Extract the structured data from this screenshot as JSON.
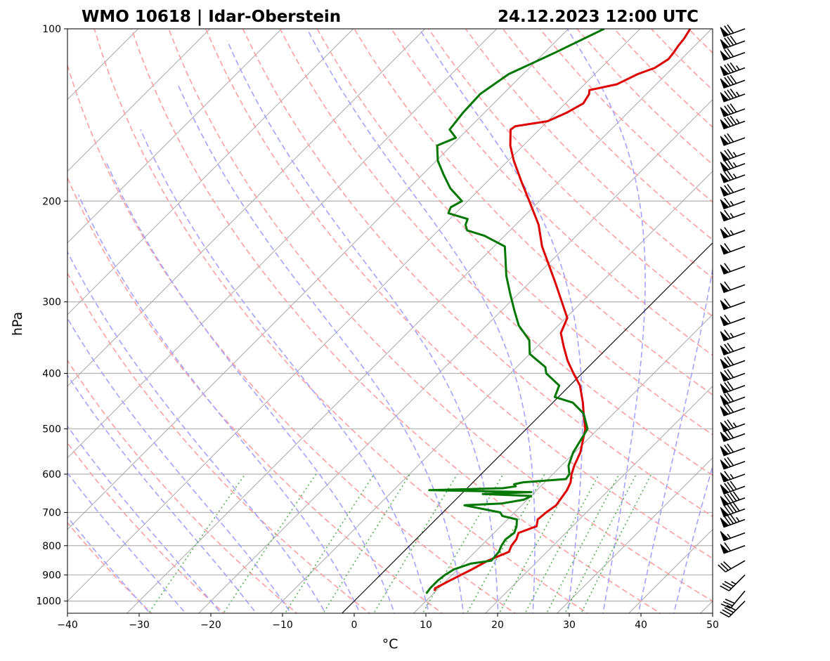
{
  "chart_data": {
    "type": "line",
    "title_left": "WMO 10618 | Idar-Oberstein",
    "title_right": "24.12.2023 12:00 UTC",
    "xlabel": "°C",
    "ylabel": "hPa",
    "xlim": [
      -40,
      50
    ],
    "ylim_hpa": [
      1050,
      100
    ],
    "x_ticks": [
      -40,
      -30,
      -20,
      -10,
      0,
      10,
      20,
      30,
      40,
      50
    ],
    "x_tick_labels": [
      "−40",
      "−30",
      "−20",
      "−10",
      "0",
      "10",
      "20",
      "30",
      "40",
      "50"
    ],
    "y_ticks": [
      1000,
      900,
      800,
      700,
      600,
      500,
      400,
      300,
      200,
      100
    ],
    "y_tick_labels": [
      "1000",
      "900",
      "800",
      "700",
      "600",
      "500",
      "400",
      "300",
      "200",
      "100"
    ],
    "colors": {
      "temperature": "#dd0000",
      "dewpoint": "#007700",
      "dry_adiabat": "#ff9f9f",
      "moist_adiabat": "#a3a3ff",
      "mixing_ratio": "#55b055",
      "isotherm": "#a0a0a0",
      "grid": "#b3b3b3",
      "zero_isotherm": "#000000"
    },
    "series": [
      {
        "name": "Temperature",
        "points": [
          [
            960,
            9.8
          ],
          [
            950,
            9.5
          ],
          [
            920,
            10.5
          ],
          [
            880,
            12.0
          ],
          [
            850,
            13.0
          ],
          [
            820,
            14.7
          ],
          [
            800,
            14.2
          ],
          [
            780,
            14.0
          ],
          [
            760,
            13.4
          ],
          [
            740,
            15.0
          ],
          [
            720,
            14.2
          ],
          [
            700,
            14.4
          ],
          [
            680,
            14.8
          ],
          [
            660,
            14.5
          ],
          [
            640,
            14.2
          ],
          [
            620,
            13.6
          ],
          [
            600,
            12.6
          ],
          [
            580,
            11.8
          ],
          [
            550,
            10.8
          ],
          [
            500,
            8.2
          ],
          [
            480,
            6.6
          ],
          [
            450,
            4.2
          ],
          [
            420,
            1.4
          ],
          [
            400,
            -1.2
          ],
          [
            380,
            -3.8
          ],
          [
            360,
            -6.2
          ],
          [
            340,
            -8.6
          ],
          [
            320,
            -9.8
          ],
          [
            300,
            -12.8
          ],
          [
            280,
            -16.0
          ],
          [
            260,
            -19.5
          ],
          [
            240,
            -23.3
          ],
          [
            220,
            -26.8
          ],
          [
            200,
            -31.4
          ],
          [
            185,
            -35.2
          ],
          [
            170,
            -39.2
          ],
          [
            160,
            -41.8
          ],
          [
            150,
            -44.0
          ],
          [
            148,
            -43.8
          ],
          [
            145,
            -40.0
          ],
          [
            140,
            -38.5
          ],
          [
            135,
            -37.5
          ],
          [
            130,
            -38.0
          ],
          [
            128,
            -38.5
          ],
          [
            125,
            -35.5
          ],
          [
            120,
            -34.0
          ],
          [
            117,
            -32.5
          ],
          [
            113,
            -31.8
          ],
          [
            110,
            -32.0
          ],
          [
            107,
            -32.3
          ],
          [
            104,
            -32.5
          ],
          [
            100,
            -33.0
          ]
        ]
      },
      {
        "name": "Dewpoint",
        "points": [
          [
            970,
            9.0
          ],
          [
            950,
            8.8
          ],
          [
            920,
            8.8
          ],
          [
            900,
            9.0
          ],
          [
            880,
            9.5
          ],
          [
            860,
            11.0
          ],
          [
            850,
            13.5
          ],
          [
            820,
            13.3
          ],
          [
            800,
            12.8
          ],
          [
            780,
            12.5
          ],
          [
            760,
            12.8
          ],
          [
            740,
            12.2
          ],
          [
            720,
            11.3
          ],
          [
            710,
            8.8
          ],
          [
            700,
            8.0
          ],
          [
            680,
            2.0
          ],
          [
            675,
            7.0
          ],
          [
            665,
            9.5
          ],
          [
            655,
            10.0
          ],
          [
            650,
            3.0
          ],
          [
            645,
            9.5
          ],
          [
            640,
            -5.0
          ],
          [
            635,
            5.0
          ],
          [
            630,
            6.5
          ],
          [
            625,
            6.0
          ],
          [
            620,
            7.0
          ],
          [
            612,
            12.5
          ],
          [
            600,
            12.3
          ],
          [
            580,
            11.0
          ],
          [
            550,
            9.8
          ],
          [
            500,
            8.5
          ],
          [
            470,
            5.8
          ],
          [
            450,
            2.8
          ],
          [
            440,
            -0.5
          ],
          [
            420,
            -1.5
          ],
          [
            400,
            -5.0
          ],
          [
            390,
            -6.0
          ],
          [
            370,
            -10.0
          ],
          [
            350,
            -12.0
          ],
          [
            330,
            -15.5
          ],
          [
            310,
            -18.3
          ],
          [
            290,
            -21.2
          ],
          [
            270,
            -24.2
          ],
          [
            250,
            -27.0
          ],
          [
            240,
            -28.5
          ],
          [
            230,
            -32.8
          ],
          [
            225,
            -36.0
          ],
          [
            220,
            -37.0
          ],
          [
            215,
            -37.5
          ],
          [
            210,
            -41.0
          ],
          [
            205,
            -41.5
          ],
          [
            200,
            -40.8
          ],
          [
            190,
            -44.2
          ],
          [
            180,
            -47.0
          ],
          [
            170,
            -49.8
          ],
          [
            160,
            -52.0
          ],
          [
            155,
            -50.5
          ],
          [
            150,
            -52.5
          ],
          [
            140,
            -53.0
          ],
          [
            130,
            -53.2
          ],
          [
            120,
            -52.0
          ],
          [
            110,
            -48.5
          ],
          [
            100,
            -45.0
          ]
        ]
      }
    ],
    "wind_barbs": [
      [
        1000,
        225,
        40
      ],
      [
        960,
        220,
        30
      ],
      [
        900,
        225,
        35
      ],
      [
        850,
        240,
        30
      ],
      [
        800,
        250,
        60
      ],
      [
        760,
        250,
        55
      ],
      [
        720,
        250,
        85
      ],
      [
        690,
        250,
        90
      ],
      [
        660,
        250,
        90
      ],
      [
        630,
        250,
        80
      ],
      [
        600,
        250,
        65
      ],
      [
        570,
        250,
        70
      ],
      [
        540,
        250,
        70
      ],
      [
        510,
        250,
        70
      ],
      [
        490,
        250,
        75
      ],
      [
        460,
        250,
        70
      ],
      [
        440,
        250,
        70
      ],
      [
        420,
        250,
        70
      ],
      [
        400,
        250,
        70
      ],
      [
        380,
        250,
        70
      ],
      [
        360,
        250,
        70
      ],
      [
        340,
        250,
        65
      ],
      [
        320,
        250,
        60
      ],
      [
        300,
        250,
        60
      ],
      [
        280,
        250,
        60
      ],
      [
        260,
        250,
        60
      ],
      [
        240,
        250,
        60
      ],
      [
        225,
        250,
        65
      ],
      [
        210,
        250,
        65
      ],
      [
        200,
        250,
        65
      ],
      [
        190,
        250,
        70
      ],
      [
        180,
        250,
        75
      ],
      [
        172,
        250,
        75
      ],
      [
        165,
        250,
        75
      ],
      [
        155,
        250,
        70
      ],
      [
        145,
        250,
        85
      ],
      [
        138,
        250,
        80
      ],
      [
        130,
        250,
        85
      ],
      [
        123,
        250,
        80
      ],
      [
        117,
        250,
        85
      ],
      [
        110,
        250,
        70
      ],
      [
        105,
        250,
        80
      ],
      [
        100,
        250,
        70
      ]
    ]
  }
}
